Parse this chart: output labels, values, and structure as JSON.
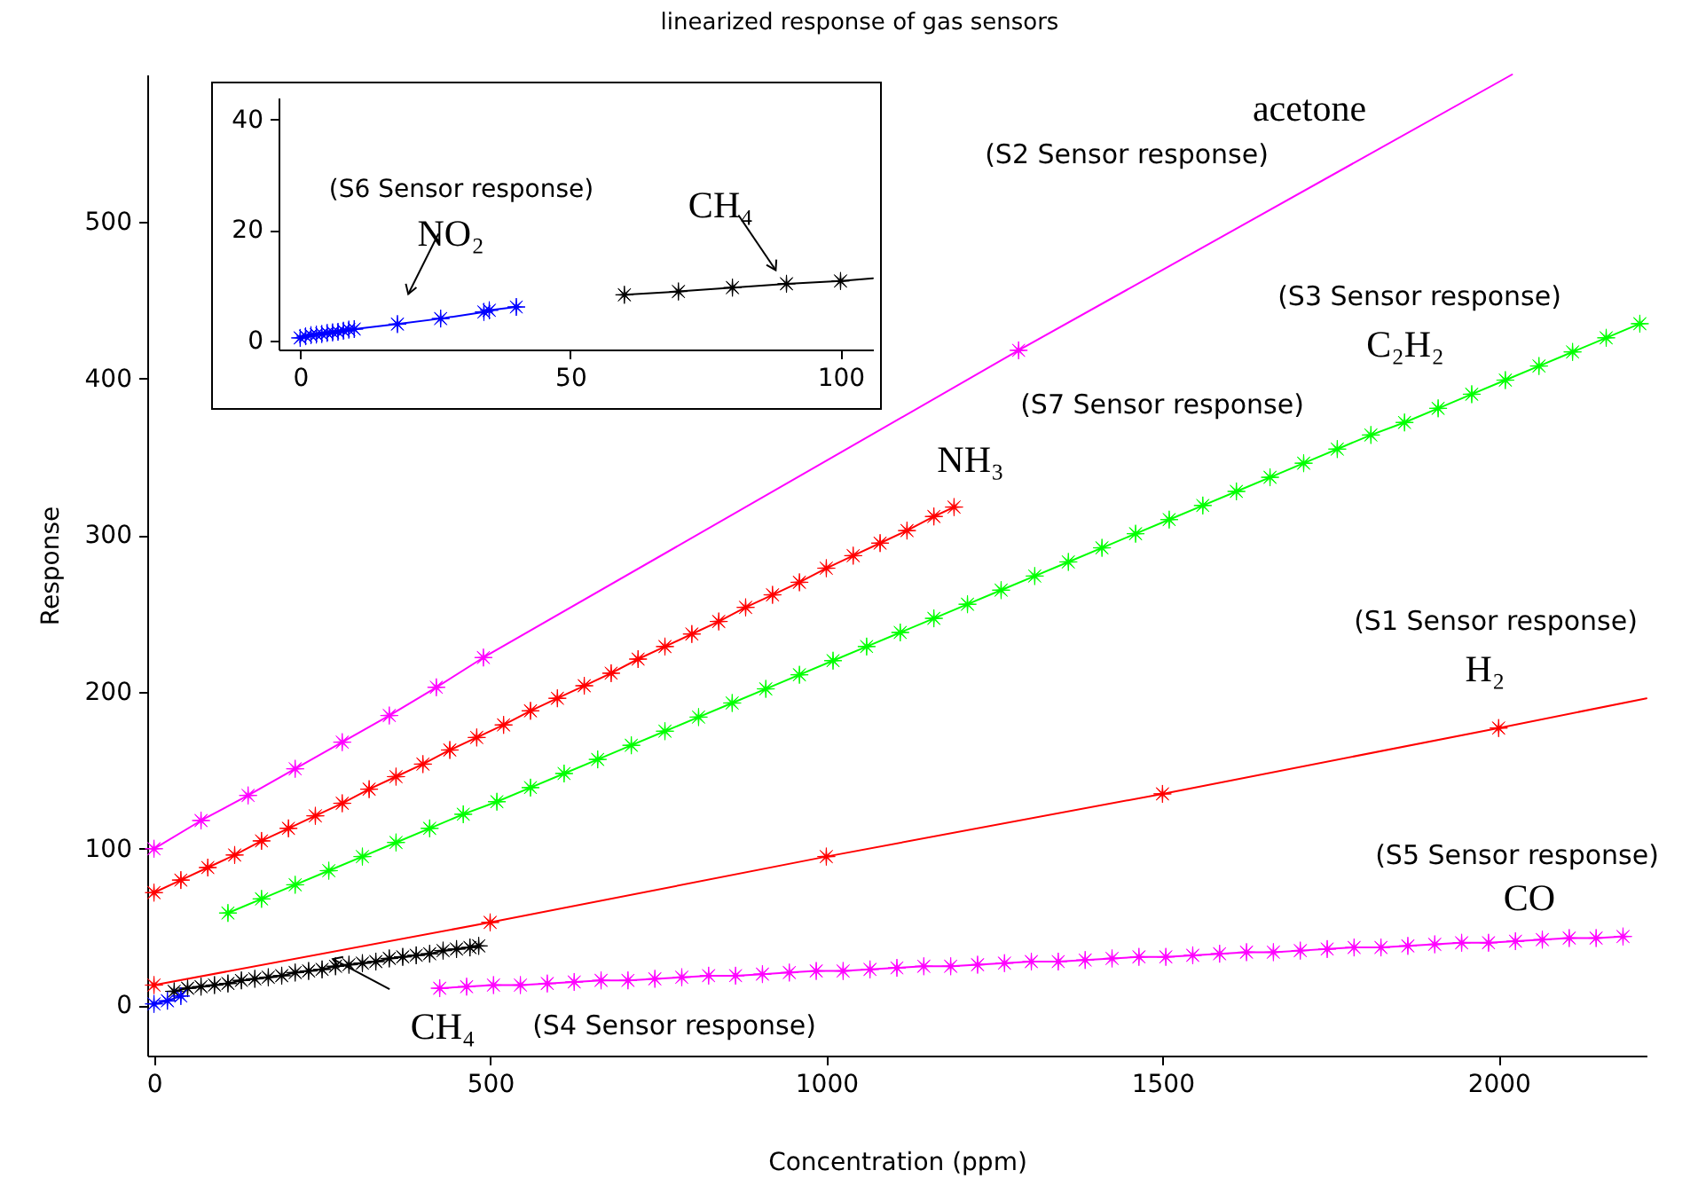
{
  "chart_data": [
    {
      "type": "line",
      "title": "linearized response of gas sensors",
      "xlabel": "Concentration (ppm)",
      "ylabel": "Response",
      "marker": "star",
      "xlim": [
        -10,
        2220
      ],
      "ylim": [
        -32,
        594
      ],
      "xticks": [
        0,
        500,
        1000,
        1500,
        2000
      ],
      "yticks": [
        0,
        100,
        200,
        300,
        400,
        500
      ],
      "series": [
        {
          "color": "#ff00ff",
          "x": [
            0,
            70,
            140,
            210,
            280,
            350,
            420,
            490,
            1286
          ],
          "values": [
            100,
            118,
            134,
            151,
            168,
            185,
            203,
            222,
            418
          ]
        },
        {
          "color": "#ff0000",
          "x": [
            0,
            40,
            80,
            120,
            160,
            200,
            240,
            280,
            320,
            360,
            400,
            440,
            480,
            520,
            560,
            600,
            640,
            680,
            720,
            760,
            800,
            840,
            880,
            920,
            960,
            1000,
            1040,
            1080,
            1120,
            1160,
            1190
          ],
          "values": [
            72,
            80,
            88,
            96,
            105,
            113,
            121,
            129,
            138,
            146,
            154,
            163,
            171,
            179,
            188,
            196,
            204,
            212,
            221,
            229,
            237,
            245,
            254,
            262,
            270,
            279,
            287,
            295,
            303,
            312,
            318
          ]
        },
        {
          "color": "#00ff00",
          "x": [
            110,
            160,
            210,
            260,
            310,
            360,
            410,
            460,
            510,
            560,
            610,
            660,
            710,
            760,
            810,
            860,
            910,
            960,
            1010,
            1060,
            1110,
            1160,
            1210,
            1260,
            1310,
            1360,
            1410,
            1460,
            1510,
            1560,
            1610,
            1660,
            1710,
            1760,
            1810,
            1860,
            1910,
            1960,
            2010,
            2060,
            2110,
            2160,
            2210
          ],
          "values": [
            59,
            68,
            77,
            86,
            95,
            104,
            113,
            122,
            130,
            139,
            148,
            157,
            166,
            175,
            184,
            193,
            202,
            211,
            220,
            229,
            238,
            247,
            256,
            265,
            274,
            283,
            292,
            301,
            310,
            319,
            328,
            337,
            346,
            355,
            364,
            372,
            381,
            390,
            399,
            408,
            417,
            426,
            435
          ]
        },
        {
          "color": "#ff0000",
          "x": [
            0,
            500,
            1000,
            1500,
            2000
          ],
          "values": [
            13,
            53,
            95,
            135,
            177
          ]
        },
        {
          "color": "#ff00ff",
          "x": [
            425,
            465,
            505,
            545,
            585,
            625,
            665,
            705,
            745,
            785,
            825,
            865,
            905,
            945,
            985,
            1025,
            1065,
            1105,
            1145,
            1185,
            1225,
            1265,
            1305,
            1345,
            1385,
            1425,
            1465,
            1505,
            1545,
            1585,
            1625,
            1665,
            1705,
            1745,
            1785,
            1825,
            1865,
            1905,
            1945,
            1985,
            2025,
            2065,
            2105,
            2145,
            2185
          ],
          "values": [
            11,
            12,
            13,
            13,
            14,
            15,
            16,
            16,
            17,
            18,
            19,
            19,
            20,
            21,
            22,
            22,
            23,
            24,
            25,
            25,
            26,
            27,
            28,
            28,
            29,
            30,
            31,
            31,
            32,
            33,
            34,
            34,
            35,
            36,
            37,
            37,
            38,
            39,
            40,
            40,
            41,
            42,
            43,
            43,
            44
          ]
        },
        {
          "color": "#000000",
          "x": [
            30,
            50,
            70,
            90,
            110,
            130,
            150,
            170,
            190,
            210,
            230,
            250,
            270,
            290,
            310,
            330,
            350,
            370,
            390,
            410,
            430,
            450,
            470,
            483
          ],
          "values": [
            9,
            11,
            12,
            13,
            14,
            16,
            17,
            18,
            19,
            21,
            22,
            23,
            25,
            26,
            27,
            28,
            30,
            31,
            32,
            33,
            35,
            36,
            37,
            38
          ]
        },
        {
          "color": "#0000ff",
          "x": [
            0,
            20,
            40
          ],
          "values": [
            1,
            3,
            6
          ]
        },
        {
          "color": "#ff00ff",
          "marker": "none",
          "x": [
            1286,
            2020
          ],
          "values": [
            418,
            594
          ]
        },
        {
          "color": "#ff0000",
          "marker": "none",
          "x": [
            2000,
            2220
          ],
          "values": [
            177,
            196
          ]
        }
      ],
      "annotations": [
        "acetone",
        "(S2 Sensor response)",
        "(S3 Sensor response)",
        "C₂H₂",
        "(S7 Sensor response)",
        "NH₃",
        "(S1 Sensor response)",
        "H₂",
        "(S5 Sensor response)",
        "CO",
        {
          "text": "CH₄",
          "x": 266,
          "y": 24
        },
        "(S4 Sensor response)"
      ]
    },
    {
      "type": "line",
      "marker": "star",
      "xlim": [
        -4,
        106
      ],
      "ylim": [
        -1.6,
        44
      ],
      "xticks": [
        0,
        50,
        100
      ],
      "yticks": [
        0,
        20,
        40
      ],
      "series": [
        {
          "color": "#0000ff",
          "x": [
            0,
            1,
            2,
            3,
            4,
            5,
            6,
            7,
            8,
            9,
            10,
            18,
            26,
            34,
            35,
            40
          ],
          "values": [
            0.5,
            0.8,
            1,
            1.1,
            1.2,
            1.4,
            1.5,
            1.6,
            1.8,
            2,
            2.1,
            3,
            4,
            5.2,
            5.5,
            6.1
          ]
        },
        {
          "color": "#000000",
          "x": [
            60,
            70,
            80,
            90,
            100
          ],
          "values": [
            8.3,
            8.9,
            9.6,
            10.3,
            10.8
          ]
        },
        {
          "color": "#000000",
          "marker": "none",
          "x": [
            100,
            106
          ],
          "values": [
            10.8,
            11.3
          ]
        }
      ],
      "annotations": [
        "(S6 Sensor response)",
        {
          "text": "NO₂",
          "x": 20,
          "y": 3.3
        },
        {
          "text": "CH₄",
          "x": 88,
          "y": 10.2
        }
      ]
    }
  ]
}
